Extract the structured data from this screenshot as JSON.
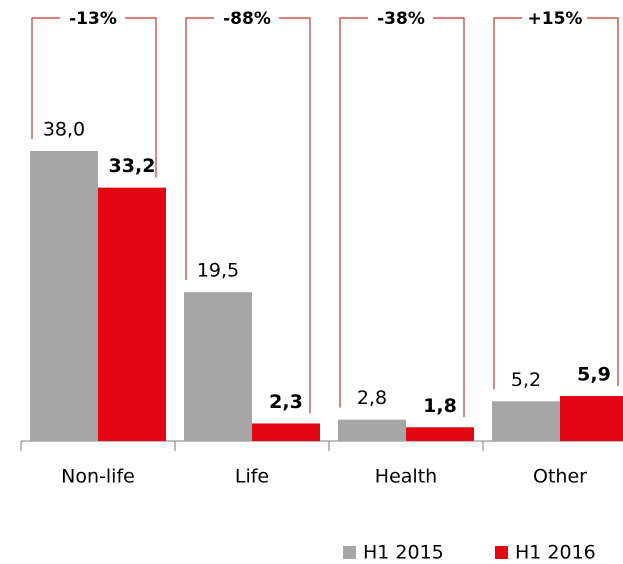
{
  "chart_data": {
    "type": "bar",
    "categories": [
      "Non-life",
      "Life",
      "Health",
      "Other"
    ],
    "series": [
      {
        "name": "H1 2015",
        "color": "#a6a6a6",
        "values": [
          38.0,
          19.5,
          2.8,
          5.2
        ],
        "value_labels": [
          "38,0",
          "19,5",
          "2,8",
          "5,2"
        ]
      },
      {
        "name": "H1 2016",
        "color": "#e30613",
        "values": [
          33.2,
          2.3,
          1.8,
          5.9
        ],
        "value_labels": [
          "33,2",
          "2,3",
          "1,8",
          "5,9"
        ]
      }
    ],
    "changes": [
      "-13%",
      "-88%",
      "-38%",
      "+15%"
    ],
    "bracket_color": "#c0392b"
  }
}
